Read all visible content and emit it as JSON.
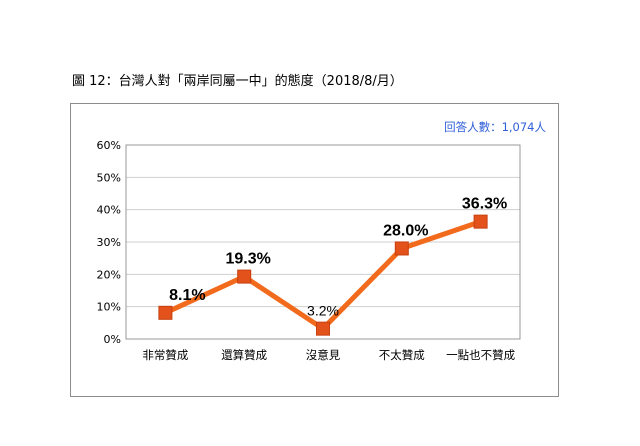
{
  "figure": {
    "title": "圖 12：台灣人對「兩岸同屬一中」的態度（2018/8/月）",
    "sample_note": "回答人數：1,074人"
  },
  "colors": {
    "line": "#f26a1b",
    "marker": "#e2521a",
    "grid": "#cfcfcf",
    "note": "#2e5fd8"
  },
  "chart_data": {
    "type": "line",
    "categories": [
      "非常贊成",
      "還算贊成",
      "沒意見",
      "不太贊成",
      "一點也不贊成"
    ],
    "series": [
      {
        "values": [
          8.1,
          19.3,
          3.2,
          28.0,
          36.3
        ]
      }
    ],
    "data_labels": [
      "8.1%",
      "19.3%",
      "3.2%",
      "28.0%",
      "36.3%"
    ],
    "ylim": [
      0,
      60
    ],
    "yticks": [
      0,
      10,
      20,
      30,
      40,
      50,
      60
    ],
    "ytick_labels": [
      "0%",
      "10%",
      "20%",
      "30%",
      "40%",
      "50%",
      "60%"
    ],
    "grid": true,
    "legend": "none"
  }
}
